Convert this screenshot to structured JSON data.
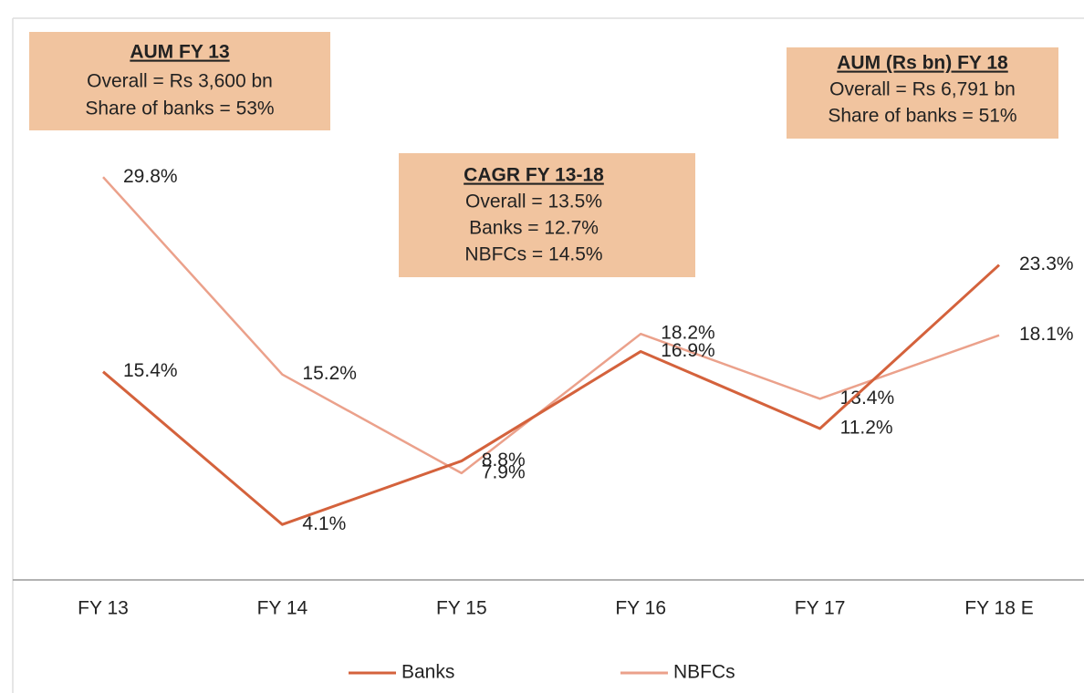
{
  "chart_data": {
    "type": "line",
    "categories": [
      "FY 13",
      "FY 14",
      "FY 15",
      "FY 16",
      "FY 17",
      "FY 18 E"
    ],
    "series": [
      {
        "name": "Banks",
        "color": "#d4623c",
        "values": [
          15.4,
          4.1,
          8.8,
          16.9,
          11.2,
          23.3
        ],
        "value_labels": [
          "15.4%",
          "4.1%",
          "8.8%",
          "16.9%",
          "11.2%",
          "23.3%"
        ]
      },
      {
        "name": "NBFCs",
        "color": "#eba18b",
        "values": [
          29.8,
          15.2,
          7.9,
          18.2,
          13.4,
          18.1
        ],
        "value_labels": [
          "29.8%",
          "15.2%",
          "7.9%",
          "18.2%",
          "13.4%",
          "18.1%"
        ]
      }
    ],
    "ylim": [
      0,
      40
    ],
    "annotations": [
      {
        "lines": [
          "AUM  FY 13",
          "Overall = Rs 3,600 bn",
          "Share of banks = 53%"
        ]
      },
      {
        "lines": [
          "CAGR  FY 13-18",
          "Overall =  13.5%",
          "Banks = 12.7%",
          "NBFCs = 14.5%"
        ]
      },
      {
        "lines": [
          "AUM  (Rs bn) FY 18",
          "Overall = Rs 6,791 bn",
          "Share of banks = 51%"
        ]
      }
    ],
    "legend": "bottom"
  }
}
